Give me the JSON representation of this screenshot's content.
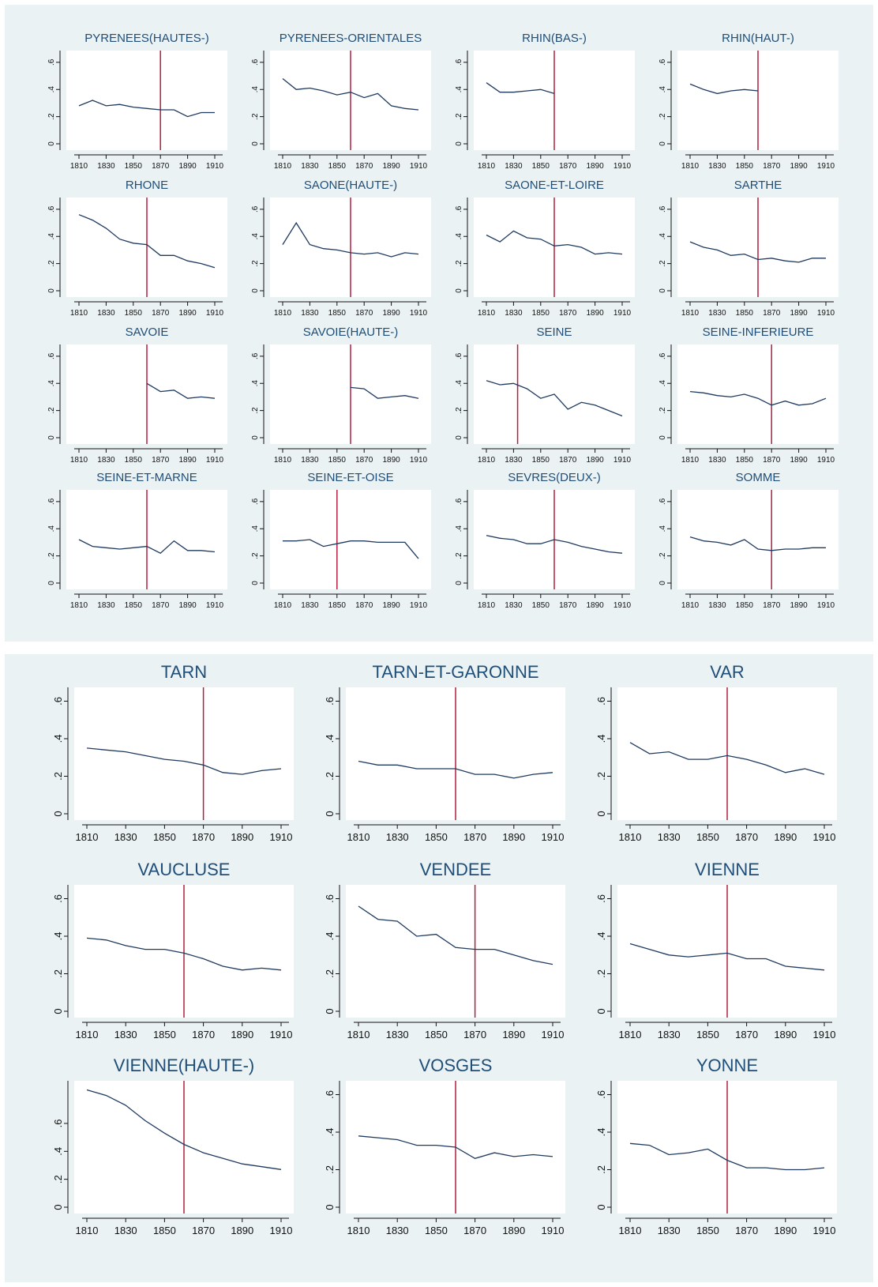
{
  "style": {
    "panel_bg": "#eaf2f3",
    "plot_bg": "#ffffff",
    "title_color": "#1f4e79",
    "series_color": "#1f3a5f",
    "vline_color": "#b21e3e",
    "axis_color": "#111111"
  },
  "chart_data": [
    {
      "type": "line",
      "title": "PYRENEES(HAUTES-)",
      "x": [
        1810,
        1820,
        1830,
        1840,
        1850,
        1860,
        1870,
        1880,
        1890,
        1900,
        1910
      ],
      "values": [
        0.28,
        0.32,
        0.28,
        0.29,
        0.27,
        0.26,
        0.25,
        0.25,
        0.2,
        0.23,
        0.23
      ],
      "vline": 1870,
      "xticks": [
        "1810",
        "1830",
        "1850",
        "1870",
        "1890",
        "1910"
      ],
      "yticks": [
        "0",
        ".2",
        ".4",
        ".6"
      ]
    },
    {
      "type": "line",
      "title": "PYRENEES-ORIENTALES",
      "x": [
        1810,
        1820,
        1830,
        1840,
        1850,
        1860,
        1870,
        1880,
        1890,
        1900,
        1910
      ],
      "values": [
        0.48,
        0.4,
        0.41,
        0.39,
        0.36,
        0.38,
        0.34,
        0.37,
        0.28,
        0.26,
        0.25
      ],
      "vline": 1860,
      "xticks": [
        "1810",
        "1830",
        "1850",
        "1870",
        "1890",
        "1910"
      ],
      "yticks": [
        "0",
        ".2",
        ".4",
        ".6"
      ]
    },
    {
      "type": "line",
      "title": "RHIN(BAS-)",
      "x": [
        1810,
        1820,
        1830,
        1840,
        1850,
        1860
      ],
      "values": [
        0.45,
        0.38,
        0.38,
        0.39,
        0.4,
        0.37
      ],
      "vline": 1860,
      "xticks": [
        "1810",
        "1830",
        "1850",
        "1870",
        "1890",
        "1910"
      ],
      "yticks": [
        "0",
        ".2",
        ".4",
        ".6"
      ]
    },
    {
      "type": "line",
      "title": "RHIN(HAUT-)",
      "x": [
        1810,
        1820,
        1830,
        1840,
        1850,
        1860
      ],
      "values": [
        0.44,
        0.4,
        0.37,
        0.39,
        0.4,
        0.39
      ],
      "vline": 1860,
      "xticks": [
        "1810",
        "1830",
        "1850",
        "1870",
        "1890",
        "1910"
      ],
      "yticks": [
        "0",
        ".2",
        ".4",
        ".6"
      ]
    },
    {
      "type": "line",
      "title": "RHONE",
      "x": [
        1810,
        1820,
        1830,
        1840,
        1850,
        1860,
        1870,
        1880,
        1890,
        1900,
        1910
      ],
      "values": [
        0.56,
        0.52,
        0.46,
        0.38,
        0.35,
        0.34,
        0.26,
        0.26,
        0.22,
        0.2,
        0.17
      ],
      "vline": 1860,
      "xticks": [
        "1810",
        "1830",
        "1850",
        "1870",
        "1890",
        "1910"
      ],
      "yticks": [
        "0",
        ".2",
        ".4",
        ".6"
      ]
    },
    {
      "type": "line",
      "title": "SAONE(HAUTE-)",
      "x": [
        1810,
        1820,
        1830,
        1840,
        1850,
        1860,
        1870,
        1880,
        1890,
        1900,
        1910
      ],
      "values": [
        0.34,
        0.5,
        0.34,
        0.31,
        0.3,
        0.28,
        0.27,
        0.28,
        0.25,
        0.28,
        0.27
      ],
      "vline": 1860,
      "xticks": [
        "1810",
        "1830",
        "1850",
        "1870",
        "1890",
        "1910"
      ],
      "yticks": [
        "0",
        ".2",
        ".4",
        ".6"
      ]
    },
    {
      "type": "line",
      "title": "SAONE-ET-LOIRE",
      "x": [
        1810,
        1820,
        1830,
        1840,
        1850,
        1860,
        1870,
        1880,
        1890,
        1900,
        1910
      ],
      "values": [
        0.41,
        0.36,
        0.44,
        0.39,
        0.38,
        0.33,
        0.34,
        0.32,
        0.27,
        0.28,
        0.27
      ],
      "vline": 1860,
      "xticks": [
        "1810",
        "1830",
        "1850",
        "1870",
        "1890",
        "1910"
      ],
      "yticks": [
        "0",
        ".2",
        ".4",
        ".6"
      ]
    },
    {
      "type": "line",
      "title": "SARTHE",
      "x": [
        1810,
        1820,
        1830,
        1840,
        1850,
        1860,
        1870,
        1880,
        1890,
        1900,
        1910
      ],
      "values": [
        0.36,
        0.32,
        0.3,
        0.26,
        0.27,
        0.23,
        0.24,
        0.22,
        0.21,
        0.24,
        0.24
      ],
      "vline": 1860,
      "xticks": [
        "1810",
        "1830",
        "1850",
        "1870",
        "1890",
        "1910"
      ],
      "yticks": [
        "0",
        ".2",
        ".4",
        ".6"
      ]
    },
    {
      "type": "line",
      "title": "SAVOIE",
      "x": [
        1860,
        1870,
        1880,
        1890,
        1900,
        1910
      ],
      "values": [
        0.4,
        0.34,
        0.35,
        0.29,
        0.3,
        0.29
      ],
      "vline": 1860,
      "xticks": [
        "1810",
        "1830",
        "1850",
        "1870",
        "1890",
        "1910"
      ],
      "yticks": [
        "0",
        ".2",
        ".4",
        ".6"
      ]
    },
    {
      "type": "line",
      "title": "SAVOIE(HAUTE-)",
      "x": [
        1860,
        1870,
        1880,
        1890,
        1900,
        1910
      ],
      "values": [
        0.37,
        0.36,
        0.29,
        0.3,
        0.31,
        0.29
      ],
      "vline": 1860,
      "xticks": [
        "1810",
        "1830",
        "1850",
        "1870",
        "1890",
        "1910"
      ],
      "yticks": [
        "0",
        ".2",
        ".4",
        ".6"
      ]
    },
    {
      "type": "line",
      "title": "SEINE",
      "x": [
        1810,
        1820,
        1830,
        1840,
        1850,
        1860,
        1870,
        1880,
        1890,
        1900,
        1910
      ],
      "values": [
        0.42,
        0.39,
        0.4,
        0.36,
        0.29,
        0.32,
        0.21,
        0.26,
        0.24,
        0.2,
        0.16
      ],
      "vline": 1833,
      "xticks": [
        "1810",
        "1830",
        "1850",
        "1870",
        "1890",
        "1910"
      ],
      "yticks": [
        "0",
        ".2",
        ".4",
        ".6"
      ]
    },
    {
      "type": "line",
      "title": "SEINE-INFERIEURE",
      "x": [
        1810,
        1820,
        1830,
        1840,
        1850,
        1860,
        1870,
        1880,
        1890,
        1900,
        1910
      ],
      "values": [
        0.34,
        0.33,
        0.31,
        0.3,
        0.32,
        0.29,
        0.24,
        0.27,
        0.24,
        0.25,
        0.29
      ],
      "vline": 1870,
      "xticks": [
        "1810",
        "1830",
        "1850",
        "1870",
        "1890",
        "1910"
      ],
      "yticks": [
        "0",
        ".2",
        ".4",
        ".6"
      ]
    },
    {
      "type": "line",
      "title": "SEINE-ET-MARNE",
      "x": [
        1810,
        1820,
        1830,
        1840,
        1850,
        1860,
        1870,
        1880,
        1890,
        1900,
        1910
      ],
      "values": [
        0.32,
        0.27,
        0.26,
        0.25,
        0.26,
        0.27,
        0.22,
        0.31,
        0.24,
        0.24,
        0.23
      ],
      "vline": 1860,
      "xticks": [
        "1810",
        "1830",
        "1850",
        "1870",
        "1890",
        "1910"
      ],
      "yticks": [
        "0",
        ".2",
        ".4",
        ".6"
      ]
    },
    {
      "type": "line",
      "title": "SEINE-ET-OISE",
      "x": [
        1810,
        1820,
        1830,
        1840,
        1850,
        1860,
        1870,
        1880,
        1890,
        1900,
        1910
      ],
      "values": [
        0.31,
        0.31,
        0.32,
        0.27,
        0.29,
        0.31,
        0.31,
        0.3,
        0.3,
        0.3,
        0.18
      ],
      "vline": 1850,
      "xticks": [
        "1810",
        "1830",
        "1850",
        "1870",
        "1890",
        "1910"
      ],
      "yticks": [
        "0",
        ".2",
        ".4",
        ".6"
      ]
    },
    {
      "type": "line",
      "title": "SEVRES(DEUX-)",
      "x": [
        1810,
        1820,
        1830,
        1840,
        1850,
        1860,
        1870,
        1880,
        1890,
        1900,
        1910
      ],
      "values": [
        0.35,
        0.33,
        0.32,
        0.29,
        0.29,
        0.32,
        0.3,
        0.27,
        0.25,
        0.23,
        0.22
      ],
      "vline": 1860,
      "xticks": [
        "1810",
        "1830",
        "1850",
        "1870",
        "1890",
        "1910"
      ],
      "yticks": [
        "0",
        ".2",
        ".4",
        ".6"
      ]
    },
    {
      "type": "line",
      "title": "SOMME",
      "x": [
        1810,
        1820,
        1830,
        1840,
        1850,
        1860,
        1870,
        1880,
        1890,
        1900,
        1910
      ],
      "values": [
        0.34,
        0.31,
        0.3,
        0.28,
        0.32,
        0.25,
        0.24,
        0.25,
        0.25,
        0.26,
        0.26
      ],
      "vline": 1870,
      "xticks": [
        "1810",
        "1830",
        "1850",
        "1870",
        "1890",
        "1910"
      ],
      "yticks": [
        "0",
        ".2",
        ".4",
        ".6"
      ]
    },
    {
      "type": "line",
      "title": "TARN",
      "x": [
        1810,
        1820,
        1830,
        1840,
        1850,
        1860,
        1870,
        1880,
        1890,
        1900,
        1910
      ],
      "values": [
        0.35,
        0.34,
        0.33,
        0.31,
        0.29,
        0.28,
        0.26,
        0.22,
        0.21,
        0.23,
        0.24
      ],
      "vline": 1870,
      "xticks": [
        "1810",
        "1830",
        "1850",
        "1870",
        "1890",
        "1910"
      ],
      "yticks": [
        "0",
        ".2",
        ".4",
        ".6"
      ]
    },
    {
      "type": "line",
      "title": "TARN-ET-GARONNE",
      "x": [
        1810,
        1820,
        1830,
        1840,
        1850,
        1860,
        1870,
        1880,
        1890,
        1900,
        1910
      ],
      "values": [
        0.28,
        0.26,
        0.26,
        0.24,
        0.24,
        0.24,
        0.21,
        0.21,
        0.19,
        0.21,
        0.22
      ],
      "vline": 1860,
      "xticks": [
        "1810",
        "1830",
        "1850",
        "1870",
        "1890",
        "1910"
      ],
      "yticks": [
        "0",
        ".2",
        ".4",
        ".6"
      ]
    },
    {
      "type": "line",
      "title": "VAR",
      "x": [
        1810,
        1820,
        1830,
        1840,
        1850,
        1860,
        1870,
        1880,
        1890,
        1900,
        1910
      ],
      "values": [
        0.38,
        0.32,
        0.33,
        0.29,
        0.29,
        0.31,
        0.29,
        0.26,
        0.22,
        0.24,
        0.21
      ],
      "vline": 1860,
      "xticks": [
        "1810",
        "1830",
        "1850",
        "1870",
        "1890",
        "1910"
      ],
      "yticks": [
        "0",
        ".2",
        ".4",
        ".6"
      ]
    },
    {
      "type": "line",
      "title": "VAUCLUSE",
      "x": [
        1810,
        1820,
        1830,
        1840,
        1850,
        1860,
        1870,
        1880,
        1890,
        1900,
        1910
      ],
      "values": [
        0.39,
        0.38,
        0.35,
        0.33,
        0.33,
        0.31,
        0.28,
        0.24,
        0.22,
        0.23,
        0.22
      ],
      "vline": 1860,
      "xticks": [
        "1810",
        "1830",
        "1850",
        "1870",
        "1890",
        "1910"
      ],
      "yticks": [
        "0",
        ".2",
        ".4",
        ".6"
      ]
    },
    {
      "type": "line",
      "title": "VENDEE",
      "x": [
        1810,
        1820,
        1830,
        1840,
        1850,
        1860,
        1870,
        1880,
        1890,
        1900,
        1910
      ],
      "values": [
        0.56,
        0.49,
        0.48,
        0.4,
        0.41,
        0.34,
        0.33,
        0.33,
        0.3,
        0.27,
        0.25
      ],
      "vline": 1870,
      "xticks": [
        "1810",
        "1830",
        "1850",
        "1870",
        "1890",
        "1910"
      ],
      "yticks": [
        "0",
        ".2",
        ".4",
        ".6"
      ]
    },
    {
      "type": "line",
      "title": "VIENNE",
      "x": [
        1810,
        1820,
        1830,
        1840,
        1850,
        1860,
        1870,
        1880,
        1890,
        1900,
        1910
      ],
      "values": [
        0.36,
        0.33,
        0.3,
        0.29,
        0.3,
        0.31,
        0.28,
        0.28,
        0.24,
        0.23,
        0.22
      ],
      "vline": 1860,
      "xticks": [
        "1810",
        "1830",
        "1850",
        "1870",
        "1890",
        "1910"
      ],
      "yticks": [
        "0",
        ".2",
        ".4",
        ".6"
      ]
    },
    {
      "type": "line",
      "title": "VIENNE(HAUTE-)",
      "x": [
        1810,
        1820,
        1830,
        1840,
        1850,
        1860,
        1870,
        1880,
        1890,
        1900,
        1910
      ],
      "values": [
        0.84,
        0.8,
        0.73,
        0.62,
        0.53,
        0.45,
        0.39,
        0.35,
        0.31,
        0.29,
        0.27
      ],
      "vline": 1860,
      "xticks": [
        "1810",
        "1830",
        "1850",
        "1870",
        "1890",
        "1910"
      ],
      "yticks": [
        "0",
        ".2",
        ".4",
        ".6"
      ],
      "ylim": [
        0,
        0.86
      ]
    },
    {
      "type": "line",
      "title": "VOSGES",
      "x": [
        1810,
        1820,
        1830,
        1840,
        1850,
        1860,
        1870,
        1880,
        1890,
        1900,
        1910
      ],
      "values": [
        0.38,
        0.37,
        0.36,
        0.33,
        0.33,
        0.32,
        0.26,
        0.29,
        0.27,
        0.28,
        0.27
      ],
      "vline": 1860,
      "xticks": [
        "1810",
        "1830",
        "1850",
        "1870",
        "1890",
        "1910"
      ],
      "yticks": [
        "0",
        ".2",
        ".4",
        ".6"
      ]
    },
    {
      "type": "line",
      "title": "YONNE",
      "x": [
        1810,
        1820,
        1830,
        1840,
        1850,
        1860,
        1870,
        1880,
        1890,
        1900,
        1910
      ],
      "values": [
        0.34,
        0.33,
        0.28,
        0.29,
        0.31,
        0.25,
        0.21,
        0.21,
        0.2,
        0.2,
        0.21
      ],
      "vline": 1860,
      "xticks": [
        "1810",
        "1830",
        "1850",
        "1870",
        "1890",
        "1910"
      ],
      "yticks": [
        "0",
        ".2",
        ".4",
        ".6"
      ]
    }
  ]
}
